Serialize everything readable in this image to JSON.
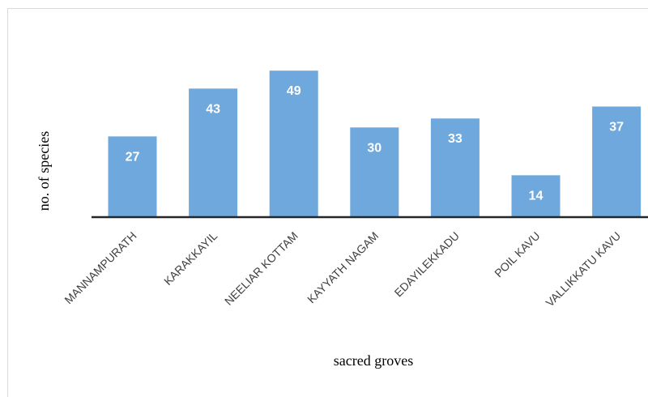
{
  "chart_data": {
    "type": "bar",
    "categories": [
      "MANNAMPURATH",
      "KARAKKAYIL",
      "NEELIAR KOTTAM",
      "KAYYATH NAGAM",
      "EDAYILEKKADU",
      "POIL KAVU",
      "VALLIKKATU KAVU"
    ],
    "values": [
      27,
      43,
      49,
      30,
      33,
      14,
      37
    ],
    "xlabel": "sacred groves",
    "ylabel": "no. of species",
    "ylim": [
      0,
      52
    ],
    "grid": false,
    "legend": "none",
    "bar_color": "#6fa8dc",
    "axis_color": "#262626"
  }
}
